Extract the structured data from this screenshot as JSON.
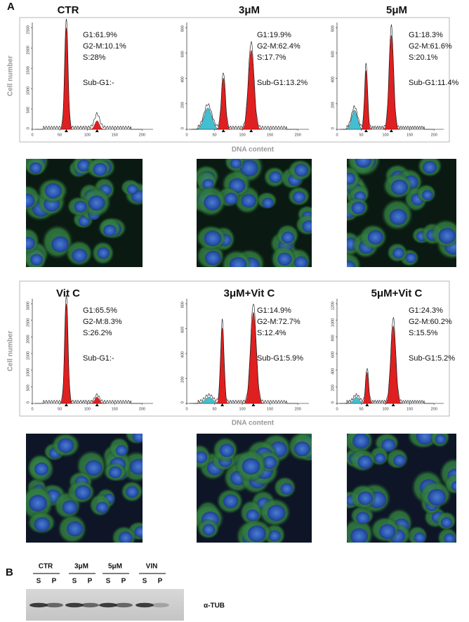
{
  "panel_labels": {
    "a": "A",
    "b": "B"
  },
  "flow_rows": [
    {
      "y_axis_label": "Cell number",
      "x_axis_label": "DNA content",
      "panels": [
        {
          "title": "CTR",
          "yticks": [
            0,
            500,
            1000,
            1500,
            2000,
            2500
          ],
          "xticks": [
            0,
            50,
            100,
            150,
            200
          ],
          "stats": [
            "G1:61.9%",
            "G2-M:10.1%",
            "S:28%",
            "Sub-G1:-"
          ]
        },
        {
          "title": "3μM",
          "yticks": [
            0,
            200,
            400,
            600,
            800
          ],
          "xticks": [
            0,
            50,
            100,
            150,
            200
          ],
          "stats": [
            "G1:19.9%",
            "G2-M:62.4%",
            "S:17.7%",
            "Sub-G1:13.2%"
          ]
        },
        {
          "title": "5μM",
          "yticks": [
            0,
            200,
            400,
            600,
            800
          ],
          "xticks": [
            0,
            50,
            100,
            150,
            200
          ],
          "stats": [
            "G1:18.3%",
            "G2-M:61.6%",
            "S:20.1%",
            "Sub-G1:11.4%"
          ]
        }
      ]
    },
    {
      "y_axis_label": "Cell number",
      "x_axis_label": "DNA content",
      "panels": [
        {
          "title": "Vit C",
          "yticks": [
            0,
            500,
            1000,
            1500,
            2000,
            2500,
            3000
          ],
          "xticks": [
            0,
            50,
            100,
            150,
            200
          ],
          "stats": [
            "G1:65.5%",
            "G2-M:8.3%",
            "S:26.2%",
            "Sub-G1:-"
          ]
        },
        {
          "title": "3μM+Vit C",
          "yticks": [
            0,
            200,
            400,
            600,
            800
          ],
          "xticks": [
            0,
            50,
            100,
            150,
            200
          ],
          "stats": [
            "G1:14.9%",
            "G2-M:72.7%",
            "S:12.4%",
            "Sub-G1:5.9%"
          ]
        },
        {
          "title": "5μM+Vit C",
          "yticks": [
            0,
            200,
            400,
            600,
            800,
            1000,
            1200
          ],
          "xticks": [
            0,
            50,
            100,
            150,
            200
          ],
          "stats": [
            "G1:24.3%",
            "G2-M:60.2%",
            "S:15.5%",
            "Sub-G1:5.2%"
          ]
        }
      ]
    }
  ],
  "western_blot": {
    "groups": [
      {
        "label": "CTR",
        "lanes": [
          "S",
          "P"
        ]
      },
      {
        "label": "3μM",
        "lanes": [
          "S",
          "P"
        ]
      },
      {
        "label": "5μM",
        "lanes": [
          "S",
          "P"
        ]
      },
      {
        "label": "VIN",
        "lanes": [
          "S",
          "P"
        ]
      }
    ],
    "protein_label": "α-TUB"
  }
}
